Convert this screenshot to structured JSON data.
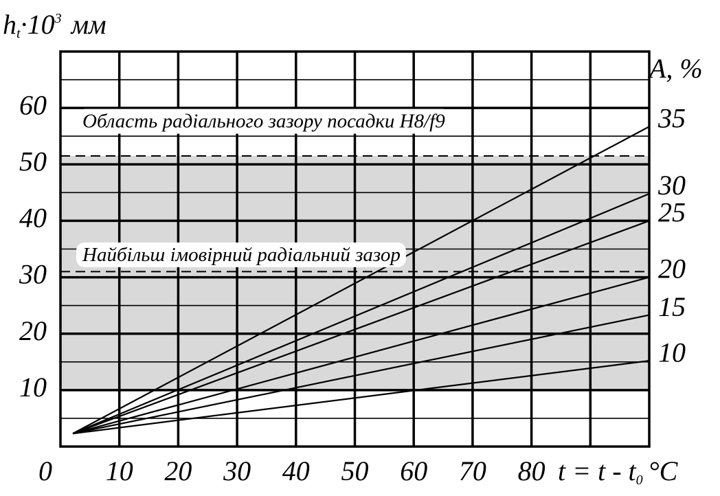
{
  "chart_data": {
    "type": "line",
    "ylabel": {
      "base": "h",
      "sub": "t",
      "mid": "·10",
      "sup": "3",
      "unit": "мм"
    },
    "y2label": "A, %",
    "xlabel": {
      "base": "t = t - t",
      "sub": "0",
      "unit": "°C"
    },
    "xlim": [
      0,
      100
    ],
    "xticks": [
      0,
      10,
      20,
      30,
      40,
      50,
      60,
      70,
      80
    ],
    "xgrid": [
      10,
      20,
      30,
      40,
      50,
      60,
      70,
      80,
      90
    ],
    "ylim": [
      0,
      70
    ],
    "yticks": [
      10,
      20,
      30,
      40,
      50,
      60
    ],
    "ygrid": [
      5,
      10,
      15,
      20,
      25,
      30,
      35,
      40,
      45,
      50,
      55,
      60,
      65
    ],
    "grid": true,
    "band": {
      "ymin": 10,
      "ymax": 51.5,
      "color": "#d9d9d9"
    },
    "hlines": [
      51.5,
      31
    ],
    "annotations": [
      "Область радіального зазору посадки H8/f9",
      "Найбільш імовірний радіальний зазор"
    ],
    "series": [
      {
        "name": "35",
        "color": "#000000",
        "x": [
          2.1,
          100
        ],
        "values": [
          2.3,
          56.7
        ]
      },
      {
        "name": "30",
        "color": "#000000",
        "x": [
          2.1,
          100
        ],
        "values": [
          2.3,
          44.8
        ]
      },
      {
        "name": "25",
        "color": "#000000",
        "x": [
          2.1,
          100
        ],
        "values": [
          2.3,
          40
        ]
      },
      {
        "name": "20",
        "color": "#000000",
        "x": [
          2.1,
          100
        ],
        "values": [
          2.3,
          30
        ]
      },
      {
        "name": "15",
        "color": "#000000",
        "x": [
          2.1,
          100
        ],
        "values": [
          2.3,
          23.3
        ]
      },
      {
        "name": "10",
        "color": "#000000",
        "x": [
          2.1,
          100
        ],
        "values": [
          2.3,
          15.2
        ]
      }
    ]
  }
}
